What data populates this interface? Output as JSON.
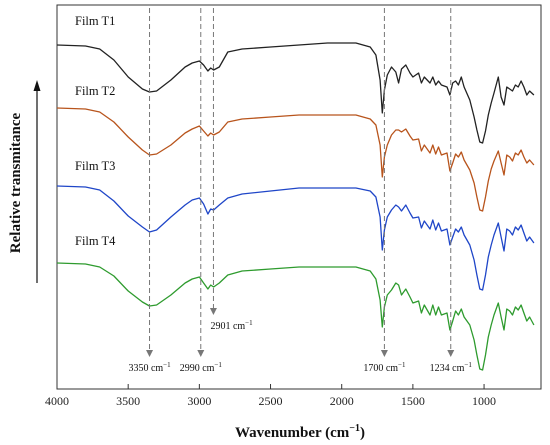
{
  "chart_data": {
    "type": "line",
    "xlabel": "Wavenumber (cm",
    "xlabel_sup": "−1",
    "xlabel_close": ")",
    "ylabel": "Relative transmitance",
    "xlim": [
      4000,
      600
    ],
    "x_reversed": true,
    "xticks": [
      4000,
      3500,
      3000,
      2500,
      2000,
      1500,
      1000
    ],
    "xtick_labels": [
      "4000",
      "3500",
      "3000",
      "2500",
      "2000",
      "1500",
      "1000"
    ],
    "y_ticks_shown": false,
    "legend": "none (series labelled inline, top-left of each trace)",
    "series": [
      {
        "name": "Film T1",
        "color": "#222222",
        "points": [
          [
            4000,
            40
          ],
          [
            3800,
            41
          ],
          [
            3700,
            44
          ],
          [
            3600,
            55
          ],
          [
            3500,
            72
          ],
          [
            3400,
            84
          ],
          [
            3350,
            87
          ],
          [
            3300,
            86
          ],
          [
            3200,
            75
          ],
          [
            3100,
            62
          ],
          [
            3050,
            58
          ],
          [
            3000,
            56
          ],
          [
            2970,
            60
          ],
          [
            2940,
            66
          ],
          [
            2920,
            63
          ],
          [
            2900,
            65
          ],
          [
            2860,
            62
          ],
          [
            2800,
            47
          ],
          [
            2700,
            44
          ],
          [
            2500,
            42
          ],
          [
            2300,
            40
          ],
          [
            2100,
            38
          ],
          [
            1900,
            38
          ],
          [
            1800,
            42
          ],
          [
            1760,
            50
          ],
          [
            1730,
            75
          ],
          [
            1715,
            108
          ],
          [
            1700,
            85
          ],
          [
            1680,
            70
          ],
          [
            1650,
            62
          ],
          [
            1620,
            67
          ],
          [
            1600,
            78
          ],
          [
            1580,
            64
          ],
          [
            1550,
            60
          ],
          [
            1520,
            68
          ],
          [
            1500,
            72
          ],
          [
            1460,
            68
          ],
          [
            1440,
            78
          ],
          [
            1420,
            72
          ],
          [
            1380,
            78
          ],
          [
            1360,
            72
          ],
          [
            1340,
            80
          ],
          [
            1320,
            76
          ],
          [
            1300,
            80
          ],
          [
            1260,
            82
          ],
          [
            1240,
            90
          ],
          [
            1220,
            78
          ],
          [
            1200,
            76
          ],
          [
            1180,
            80
          ],
          [
            1160,
            72
          ],
          [
            1140,
            82
          ],
          [
            1100,
            95
          ],
          [
            1070,
            112
          ],
          [
            1050,
            125
          ],
          [
            1030,
            137
          ],
          [
            1010,
            138
          ],
          [
            990,
            126
          ],
          [
            970,
            110
          ],
          [
            950,
            98
          ],
          [
            930,
            88
          ],
          [
            900,
            72
          ],
          [
            880,
            92
          ],
          [
            860,
            100
          ],
          [
            840,
            82
          ],
          [
            820,
            84
          ],
          [
            800,
            86
          ],
          [
            780,
            80
          ],
          [
            760,
            82
          ],
          [
            740,
            76
          ],
          [
            720,
            82
          ],
          [
            700,
            90
          ],
          [
            680,
            86
          ],
          [
            650,
            90
          ]
        ]
      },
      {
        "name": "Film T2",
        "color": "#b8541c",
        "points": [
          [
            4000,
            103
          ],
          [
            3800,
            104
          ],
          [
            3700,
            107
          ],
          [
            3600,
            117
          ],
          [
            3500,
            132
          ],
          [
            3400,
            145
          ],
          [
            3350,
            150
          ],
          [
            3300,
            149
          ],
          [
            3200,
            140
          ],
          [
            3100,
            128
          ],
          [
            3050,
            124
          ],
          [
            3000,
            121
          ],
          [
            2970,
            126
          ],
          [
            2940,
            131
          ],
          [
            2920,
            128
          ],
          [
            2900,
            130
          ],
          [
            2860,
            127
          ],
          [
            2800,
            117
          ],
          [
            2700,
            114
          ],
          [
            2500,
            112
          ],
          [
            2300,
            110
          ],
          [
            2100,
            110
          ],
          [
            1900,
            110
          ],
          [
            1800,
            114
          ],
          [
            1760,
            120
          ],
          [
            1730,
            140
          ],
          [
            1715,
            172
          ],
          [
            1700,
            152
          ],
          [
            1680,
            140
          ],
          [
            1650,
            130
          ],
          [
            1620,
            125
          ],
          [
            1600,
            125
          ],
          [
            1580,
            127
          ],
          [
            1550,
            124
          ],
          [
            1520,
            131
          ],
          [
            1500,
            135
          ],
          [
            1460,
            134
          ],
          [
            1440,
            146
          ],
          [
            1420,
            140
          ],
          [
            1380,
            148
          ],
          [
            1360,
            140
          ],
          [
            1340,
            149
          ],
          [
            1320,
            142
          ],
          [
            1300,
            150
          ],
          [
            1260,
            148
          ],
          [
            1240,
            166
          ],
          [
            1220,
            158
          ],
          [
            1200,
            149
          ],
          [
            1180,
            152
          ],
          [
            1160,
            147
          ],
          [
            1140,
            155
          ],
          [
            1100,
            165
          ],
          [
            1070,
            178
          ],
          [
            1050,
            192
          ],
          [
            1030,
            205
          ],
          [
            1010,
            206
          ],
          [
            990,
            192
          ],
          [
            970,
            176
          ],
          [
            950,
            164
          ],
          [
            930,
            156
          ],
          [
            900,
            146
          ],
          [
            880,
            158
          ],
          [
            860,
            170
          ],
          [
            840,
            150
          ],
          [
            820,
            152
          ],
          [
            800,
            156
          ],
          [
            780,
            148
          ],
          [
            760,
            150
          ],
          [
            740,
            145
          ],
          [
            720,
            152
          ],
          [
            700,
            158
          ],
          [
            680,
            155
          ],
          [
            650,
            160
          ]
        ]
      },
      {
        "name": "Film T3",
        "color": "#1f46c8",
        "points": [
          [
            4000,
            181
          ],
          [
            3800,
            182
          ],
          [
            3700,
            185
          ],
          [
            3600,
            196
          ],
          [
            3500,
            211
          ],
          [
            3400,
            222
          ],
          [
            3350,
            227
          ],
          [
            3300,
            225
          ],
          [
            3200,
            212
          ],
          [
            3100,
            200
          ],
          [
            3050,
            195
          ],
          [
            3000,
            193
          ],
          [
            2970,
            199
          ],
          [
            2940,
            209
          ],
          [
            2920,
            204
          ],
          [
            2900,
            205
          ],
          [
            2860,
            200
          ],
          [
            2800,
            193
          ],
          [
            2700,
            189
          ],
          [
            2500,
            186
          ],
          [
            2300,
            183
          ],
          [
            2100,
            183
          ],
          [
            1900,
            183
          ],
          [
            1800,
            186
          ],
          [
            1760,
            192
          ],
          [
            1730,
            212
          ],
          [
            1715,
            245
          ],
          [
            1700,
            225
          ],
          [
            1680,
            212
          ],
          [
            1650,
            205
          ],
          [
            1620,
            200
          ],
          [
            1600,
            202
          ],
          [
            1580,
            206
          ],
          [
            1550,
            200
          ],
          [
            1520,
            208
          ],
          [
            1500,
            213
          ],
          [
            1460,
            212
          ],
          [
            1440,
            223
          ],
          [
            1420,
            216
          ],
          [
            1380,
            224
          ],
          [
            1360,
            215
          ],
          [
            1340,
            225
          ],
          [
            1320,
            218
          ],
          [
            1300,
            226
          ],
          [
            1260,
            224
          ],
          [
            1240,
            240
          ],
          [
            1220,
            232
          ],
          [
            1200,
            224
          ],
          [
            1180,
            227
          ],
          [
            1160,
            222
          ],
          [
            1140,
            230
          ],
          [
            1100,
            240
          ],
          [
            1070,
            255
          ],
          [
            1050,
            270
          ],
          [
            1030,
            284
          ],
          [
            1010,
            285
          ],
          [
            990,
            270
          ],
          [
            970,
            252
          ],
          [
            950,
            240
          ],
          [
            930,
            230
          ],
          [
            900,
            218
          ],
          [
            880,
            232
          ],
          [
            860,
            246
          ],
          [
            840,
            224
          ],
          [
            820,
            226
          ],
          [
            800,
            230
          ],
          [
            780,
            222
          ],
          [
            760,
            225
          ],
          [
            740,
            220
          ],
          [
            720,
            228
          ],
          [
            700,
            236
          ],
          [
            680,
            232
          ],
          [
            650,
            238
          ]
        ]
      },
      {
        "name": "Film T4",
        "color": "#2e9b2e",
        "points": [
          [
            4000,
            258
          ],
          [
            3800,
            259
          ],
          [
            3700,
            262
          ],
          [
            3600,
            271
          ],
          [
            3500,
            286
          ],
          [
            3400,
            297
          ],
          [
            3350,
            301
          ],
          [
            3300,
            300
          ],
          [
            3200,
            290
          ],
          [
            3100,
            278
          ],
          [
            3050,
            274
          ],
          [
            3000,
            272
          ],
          [
            2970,
            278
          ],
          [
            2940,
            284
          ],
          [
            2920,
            280
          ],
          [
            2900,
            282
          ],
          [
            2860,
            278
          ],
          [
            2800,
            270
          ],
          [
            2700,
            266
          ],
          [
            2500,
            264
          ],
          [
            2300,
            262
          ],
          [
            2100,
            262
          ],
          [
            1900,
            262
          ],
          [
            1800,
            266
          ],
          [
            1760,
            274
          ],
          [
            1730,
            295
          ],
          [
            1715,
            322
          ],
          [
            1700,
            302
          ],
          [
            1680,
            290
          ],
          [
            1650,
            285
          ],
          [
            1620,
            278
          ],
          [
            1600,
            280
          ],
          [
            1580,
            290
          ],
          [
            1550,
            284
          ],
          [
            1520,
            292
          ],
          [
            1500,
            298
          ],
          [
            1460,
            296
          ],
          [
            1440,
            308
          ],
          [
            1420,
            300
          ],
          [
            1380,
            310
          ],
          [
            1360,
            300
          ],
          [
            1340,
            310
          ],
          [
            1320,
            302
          ],
          [
            1300,
            310
          ],
          [
            1260,
            308
          ],
          [
            1240,
            325
          ],
          [
            1220,
            316
          ],
          [
            1200,
            306
          ],
          [
            1180,
            310
          ],
          [
            1160,
            304
          ],
          [
            1140,
            312
          ],
          [
            1100,
            320
          ],
          [
            1070,
            335
          ],
          [
            1050,
            350
          ],
          [
            1030,
            364
          ],
          [
            1010,
            365
          ],
          [
            990,
            350
          ],
          [
            970,
            332
          ],
          [
            950,
            320
          ],
          [
            930,
            310
          ],
          [
            900,
            298
          ],
          [
            880,
            312
          ],
          [
            860,
            325
          ],
          [
            840,
            304
          ],
          [
            820,
            306
          ],
          [
            800,
            310
          ],
          [
            780,
            302
          ],
          [
            760,
            305
          ],
          [
            740,
            300
          ],
          [
            720,
            308
          ],
          [
            700,
            316
          ],
          [
            680,
            312
          ],
          [
            650,
            320
          ]
        ]
      }
    ],
    "peak_markers": [
      {
        "x": 3350,
        "label": "3350 cm",
        "sup": "−1"
      },
      {
        "x": 2990,
        "label": "2990 cm",
        "sup": "−1"
      },
      {
        "x": 2901,
        "label": "2901 cm",
        "sup": "−1"
      },
      {
        "x": 1700,
        "label": "1700 cm",
        "sup": "−1"
      },
      {
        "x": 1234,
        "label": "1234 cm",
        "sup": "−1"
      }
    ]
  }
}
